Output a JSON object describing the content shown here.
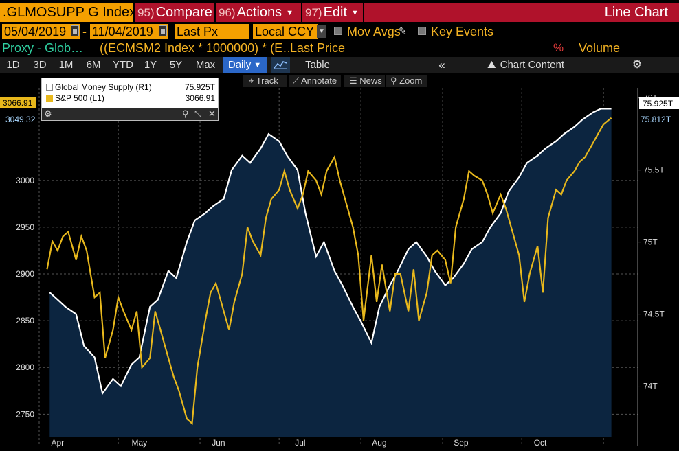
{
  "header": {
    "ticker": ".GLMOSUPP G Index",
    "compare_num": "95)",
    "compare_label": "Compare",
    "actions_num": "96)",
    "actions_label": "Actions",
    "edit_num": "97)",
    "edit_label": "Edit",
    "chart_type": "Line Chart"
  },
  "params": {
    "start_date": "05/04/2019",
    "end_date": "11/04/2019",
    "price_field": "Last Px",
    "currency": "Local CCY",
    "mov_avgs": "Mov Avgs",
    "key_events": "Key Events"
  },
  "legend_bar": {
    "proxy": "Proxy - Glob…",
    "formula": "((ECMSM2 Index * 1000000) * (E…",
    "last_price": "Last Price",
    "pct": "%",
    "volume": "Volume"
  },
  "toolbar": {
    "periods": [
      "1D",
      "3D",
      "1M",
      "6M",
      "YTD",
      "1Y",
      "5Y",
      "Max"
    ],
    "frequency": "Daily",
    "table": "Table",
    "chart_content": "Chart Content"
  },
  "tools": {
    "track": "Track",
    "annotate": "Annotate",
    "news": "News",
    "zoom": "Zoom"
  },
  "legend": {
    "series1_name": "Global Money Supply (R1)",
    "series1_value": "75.925T",
    "series2_name": "S&P 500 (L1)",
    "series2_value": "3066.91"
  },
  "tags": {
    "left_sp": "3066.91",
    "left_other": "3049.32",
    "right_gms": "75.925T",
    "right_other": "75.812T"
  },
  "colors": {
    "gms": "#ffffff",
    "sp": "#e8b81c",
    "area": "#0c2540",
    "accent": "#f4a000",
    "red": "#b0122b"
  },
  "chart_data": {
    "type": "line",
    "x_ticks": [
      "Apr",
      "May",
      "Jun",
      "Jul",
      "Aug",
      "Sep",
      "Oct"
    ],
    "left_axis": {
      "ticks": [
        2750,
        2800,
        2850,
        2900,
        2950,
        3000
      ],
      "range": [
        2726,
        3099
      ]
    },
    "right_axis": {
      "ticks": [
        "74T",
        "74.5T",
        "75T",
        "75.5T",
        "76T"
      ],
      "tick_values": [
        74.0,
        74.5,
        75.0,
        75.5,
        76.0
      ],
      "range": [
        73.65,
        76.07
      ]
    },
    "series": [
      {
        "name": "S&P 500 (L1)",
        "axis": "left",
        "dates": [
          "2019-04-04",
          "2019-04-06",
          "2019-04-08",
          "2019-04-10",
          "2019-04-12",
          "2019-04-15",
          "2019-04-17",
          "2019-04-19",
          "2019-04-22",
          "2019-04-24",
          "2019-04-26",
          "2019-04-29",
          "2019-05-01",
          "2019-05-03",
          "2019-05-06",
          "2019-05-08",
          "2019-05-10",
          "2019-05-13",
          "2019-05-15",
          "2019-05-17",
          "2019-05-20",
          "2019-05-22",
          "2019-05-24",
          "2019-05-27",
          "2019-05-29",
          "2019-05-31",
          "2019-06-03",
          "2019-06-05",
          "2019-06-07",
          "2019-06-10",
          "2019-06-12",
          "2019-06-14",
          "2019-06-17",
          "2019-06-19",
          "2019-06-21",
          "2019-06-24",
          "2019-06-26",
          "2019-06-28",
          "2019-07-01",
          "2019-07-03",
          "2019-07-05",
          "2019-07-08",
          "2019-07-10",
          "2019-07-12",
          "2019-07-15",
          "2019-07-17",
          "2019-07-19",
          "2019-07-22",
          "2019-07-24",
          "2019-07-26",
          "2019-07-29",
          "2019-07-31",
          "2019-08-02",
          "2019-08-05",
          "2019-08-07",
          "2019-08-09",
          "2019-08-12",
          "2019-08-14",
          "2019-08-16",
          "2019-08-19",
          "2019-08-21",
          "2019-08-23",
          "2019-08-26",
          "2019-08-28",
          "2019-08-30",
          "2019-09-02",
          "2019-09-04",
          "2019-09-06",
          "2019-09-09",
          "2019-09-11",
          "2019-09-13",
          "2019-09-16",
          "2019-09-18",
          "2019-09-20",
          "2019-09-23",
          "2019-09-25",
          "2019-09-27",
          "2019-09-30",
          "2019-10-02",
          "2019-10-04",
          "2019-10-07",
          "2019-10-09",
          "2019-10-11",
          "2019-10-14",
          "2019-10-16",
          "2019-10-18",
          "2019-10-21",
          "2019-10-23",
          "2019-10-25",
          "2019-10-28",
          "2019-10-30",
          "2019-11-01",
          "2019-11-04"
        ],
        "values": [
          2905,
          2935,
          2925,
          2940,
          2945,
          2915,
          2940,
          2925,
          2875,
          2880,
          2810,
          2840,
          2875,
          2860,
          2840,
          2860,
          2800,
          2810,
          2860,
          2840,
          2810,
          2790,
          2775,
          2745,
          2740,
          2800,
          2850,
          2880,
          2890,
          2860,
          2840,
          2870,
          2900,
          2950,
          2935,
          2920,
          2960,
          2980,
          2990,
          3010,
          2990,
          2970,
          2985,
          3010,
          3000,
          2985,
          3010,
          3025,
          3000,
          2980,
          2950,
          2920,
          2850,
          2920,
          2870,
          2910,
          2860,
          2900,
          2900,
          2860,
          2905,
          2850,
          2880,
          2920,
          2925,
          2915,
          2890,
          2950,
          2980,
          3010,
          3005,
          3000,
          2985,
          2965,
          2985,
          2970,
          2950,
          2920,
          2870,
          2900,
          2930,
          2880,
          2960,
          2990,
          2985,
          3000,
          3010,
          3020,
          3025,
          3040,
          3050,
          3060,
          3066.91
        ]
      },
      {
        "name": "Global Money Supply (R1)",
        "axis": "right",
        "dates": [
          "2019-04-05",
          "2019-04-08",
          "2019-04-11",
          "2019-04-15",
          "2019-04-18",
          "2019-04-22",
          "2019-04-25",
          "2019-04-29",
          "2019-05-02",
          "2019-05-06",
          "2019-05-09",
          "2019-05-13",
          "2019-05-16",
          "2019-05-20",
          "2019-05-23",
          "2019-05-27",
          "2019-05-30",
          "2019-06-03",
          "2019-06-06",
          "2019-06-10",
          "2019-06-13",
          "2019-06-17",
          "2019-06-20",
          "2019-06-24",
          "2019-06-27",
          "2019-07-01",
          "2019-07-04",
          "2019-07-08",
          "2019-07-11",
          "2019-07-15",
          "2019-07-18",
          "2019-07-22",
          "2019-07-25",
          "2019-07-29",
          "2019-08-01",
          "2019-08-05",
          "2019-08-08",
          "2019-08-12",
          "2019-08-15",
          "2019-08-19",
          "2019-08-22",
          "2019-08-26",
          "2019-08-29",
          "2019-09-02",
          "2019-09-05",
          "2019-09-09",
          "2019-09-12",
          "2019-09-16",
          "2019-09-19",
          "2019-09-23",
          "2019-09-26",
          "2019-09-30",
          "2019-10-03",
          "2019-10-07",
          "2019-10-10",
          "2019-10-14",
          "2019-10-17",
          "2019-10-21",
          "2019-10-24",
          "2019-10-28",
          "2019-10-31",
          "2019-11-04"
        ],
        "values": [
          74.65,
          74.6,
          74.55,
          74.5,
          74.28,
          74.2,
          73.95,
          74.05,
          74.0,
          74.15,
          74.2,
          74.55,
          74.6,
          74.8,
          74.75,
          75.0,
          75.15,
          75.2,
          75.25,
          75.3,
          75.5,
          75.6,
          75.55,
          75.65,
          75.75,
          75.7,
          75.6,
          75.5,
          75.2,
          74.9,
          75.0,
          74.8,
          74.7,
          74.55,
          74.45,
          74.3,
          74.55,
          74.7,
          74.8,
          74.95,
          75.0,
          74.9,
          74.8,
          74.7,
          74.75,
          74.85,
          74.95,
          75.0,
          75.1,
          75.2,
          75.35,
          75.45,
          75.55,
          75.6,
          75.65,
          75.7,
          75.75,
          75.8,
          75.85,
          75.9,
          75.925,
          75.925
        ]
      }
    ]
  }
}
